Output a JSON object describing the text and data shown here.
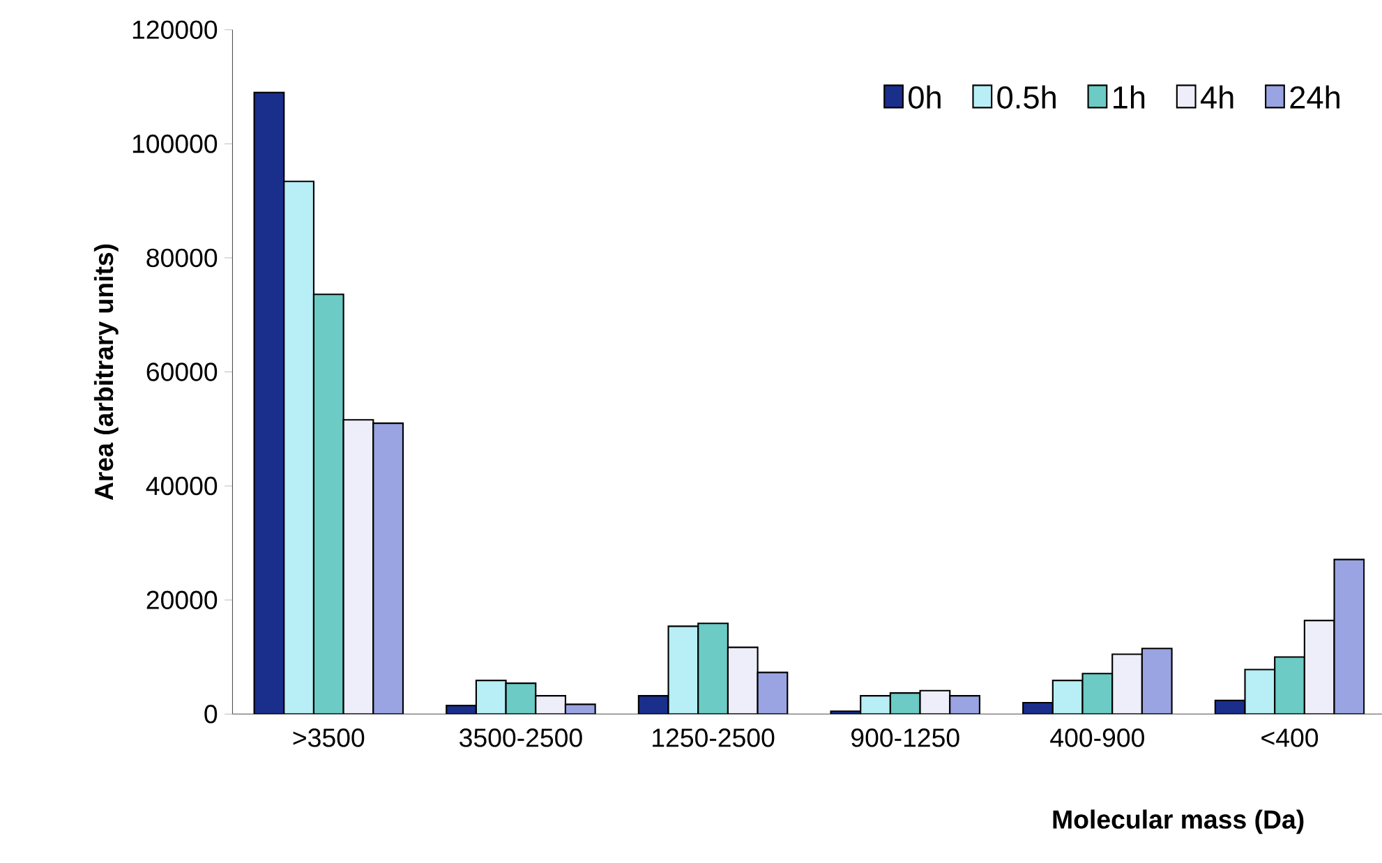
{
  "chart_data": {
    "type": "bar",
    "xlabel": "Molecular mass (Da)",
    "ylabel": "Area (arbitrary units)",
    "categories": [
      ">3500",
      "3500-2500",
      "1250-2500",
      "900-1250",
      "400-900",
      "<400"
    ],
    "series": [
      {
        "name": "0h",
        "color": "#1a2e8c",
        "values": [
          109000,
          1500,
          3200,
          500,
          2000,
          2400
        ]
      },
      {
        "name": "0.5h",
        "color": "#b8eef6",
        "values": [
          93400,
          5900,
          15400,
          3200,
          5900,
          7800
        ]
      },
      {
        "name": "1h",
        "color": "#6ccbc4",
        "values": [
          73600,
          5400,
          15900,
          3700,
          7100,
          10000
        ]
      },
      {
        "name": "4h",
        "color": "#eeeefa",
        "values": [
          51600,
          3200,
          11700,
          4100,
          10500,
          16400
        ]
      },
      {
        "name": "24h",
        "color": "#9aa4e2",
        "values": [
          51000,
          1700,
          7300,
          3200,
          11500,
          27100
        ]
      }
    ],
    "ylim": [
      0,
      120000
    ],
    "yticks": [
      0,
      20000,
      40000,
      60000,
      80000,
      100000,
      120000
    ],
    "grid": false,
    "legend": "top right"
  }
}
